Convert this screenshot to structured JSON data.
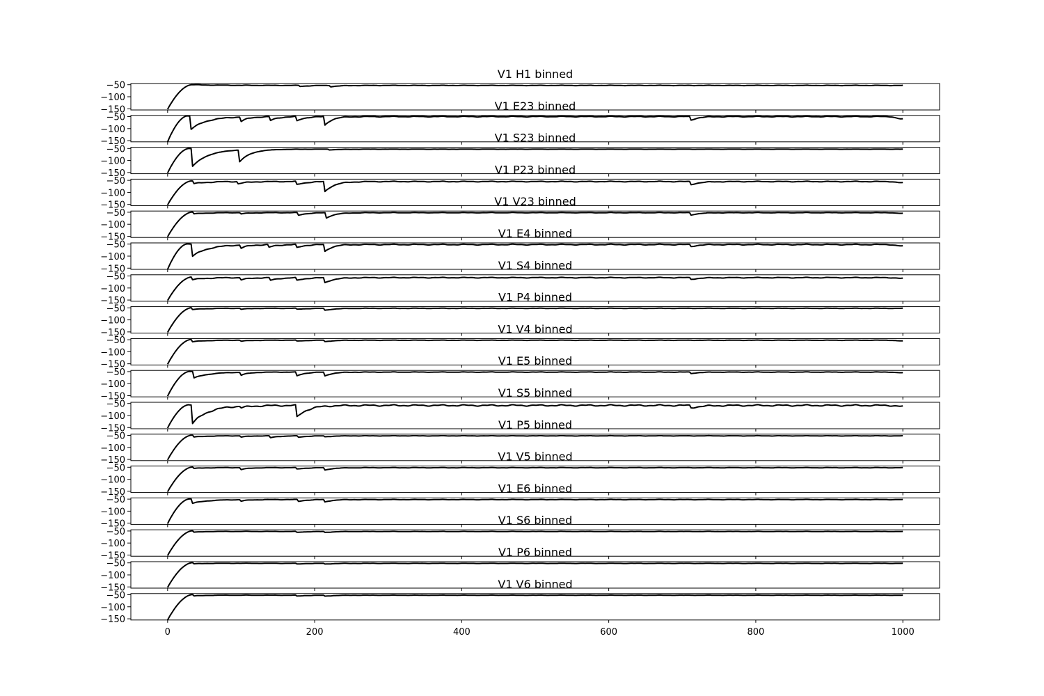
{
  "chart_data": {
    "type": "line",
    "x_range": [
      0,
      1000
    ],
    "xlim": [
      -50,
      1050
    ],
    "ylim": [
      -155,
      -45
    ],
    "x_ticks": [
      0,
      200,
      400,
      600,
      800,
      1000
    ],
    "x_tick_labels": [
      "0",
      "200",
      "400",
      "600",
      "800",
      "1000"
    ],
    "y_ticks": [
      -50,
      -100,
      -150
    ],
    "y_tick_labels": [
      "−50",
      "−100",
      "−150"
    ],
    "line_color": "#000000",
    "grid": false,
    "panels": [
      {
        "title": "V1 H1 binned",
        "start": -152,
        "rise_end": 33,
        "plateau": -53,
        "dips": [
          [
            180,
            -57
          ],
          [
            222,
            -58
          ],
          [
            310,
            -53
          ]
        ],
        "dip_width": 40,
        "spikes": [],
        "noise": 0.6,
        "end_dip": 0
      },
      {
        "title": "V1 E23 binned",
        "start": -155,
        "rise_end": 27,
        "plateau": -50,
        "dips": [
          [
            100,
            -68
          ],
          [
            140,
            -66
          ],
          [
            176,
            -68
          ],
          [
            214,
            -86
          ],
          [
            712,
            -65
          ]
        ],
        "dip_width": 30,
        "spikes": [
          [
            32,
            -105
          ]
        ],
        "noise": 1.0,
        "end_dip": -60
      },
      {
        "title": "V1 S23 binned",
        "start": -152,
        "rise_end": 29,
        "plateau": -53,
        "dips": [
          [
            97,
            -105
          ],
          [
            220,
            -56
          ]
        ],
        "dip_width": 45,
        "spikes": [
          [
            33,
            -130
          ]
        ],
        "noise": 0.3,
        "end_dip": 0
      },
      {
        "title": "V1 P23 binned",
        "start": -152,
        "rise_end": 33,
        "plateau": -55,
        "dips": [
          [
            96,
            -64
          ],
          [
            176,
            -68
          ],
          [
            213,
            -100
          ],
          [
            712,
            -68
          ]
        ],
        "dip_width": 38,
        "spikes": [
          [
            35,
            -67
          ]
        ],
        "noise": 1.0,
        "end_dip": -60
      },
      {
        "title": "V1 V23 binned",
        "start": -152,
        "rise_end": 34,
        "plateau": -52,
        "dips": [
          [
            100,
            -57
          ],
          [
            178,
            -63
          ],
          [
            215,
            -76
          ],
          [
            712,
            -62
          ]
        ],
        "dip_width": 34,
        "spikes": [
          [
            35,
            -60
          ]
        ],
        "noise": 0.6,
        "end_dip": -55
      },
      {
        "title": "V1 E4 binned",
        "start": -155,
        "rise_end": 27,
        "plateau": -52,
        "dips": [
          [
            100,
            -65
          ],
          [
            138,
            -63
          ],
          [
            176,
            -65
          ],
          [
            213,
            -84
          ],
          [
            712,
            -60
          ]
        ],
        "dip_width": 30,
        "spikes": [
          [
            33,
            -105
          ]
        ],
        "noise": 1.2,
        "end_dip": -58
      },
      {
        "title": "V1 S4 binned",
        "start": -152,
        "rise_end": 33,
        "plateau": -57,
        "dips": [
          [
            100,
            -66
          ],
          [
            140,
            -68
          ],
          [
            176,
            -68
          ],
          [
            213,
            -80
          ],
          [
            712,
            -64
          ]
        ],
        "dip_width": 36,
        "spikes": [
          [
            34,
            -68
          ]
        ],
        "noise": 1.0,
        "end_dip": -60
      },
      {
        "title": "V1 P4 binned",
        "start": -152,
        "rise_end": 33,
        "plateau": -52,
        "dips": [
          [
            100,
            -56
          ],
          [
            176,
            -56
          ],
          [
            214,
            -60
          ]
        ],
        "dip_width": 38,
        "spikes": [
          [
            34,
            -60
          ]
        ],
        "noise": 0.5,
        "end_dip": 0
      },
      {
        "title": "V1 V4 binned",
        "start": -152,
        "rise_end": 32,
        "plateau": -52,
        "dips": [
          [
            100,
            -56
          ],
          [
            176,
            -56
          ],
          [
            214,
            -58
          ]
        ],
        "dip_width": 36,
        "spikes": [
          [
            32,
            -62
          ]
        ],
        "noise": 0.5,
        "end_dip": -55
      },
      {
        "title": "V1 E5 binned",
        "start": -152,
        "rise_end": 30,
        "plateau": -52,
        "dips": [
          [
            100,
            -64
          ],
          [
            176,
            -68
          ],
          [
            214,
            -68
          ],
          [
            712,
            -58
          ]
        ],
        "dip_width": 32,
        "spikes": [
          [
            35,
            -80
          ]
        ],
        "noise": 0.6,
        "end_dip": -55
      },
      {
        "title": "V1 S5 binned",
        "start": -152,
        "rise_end": 29,
        "plateau": -58,
        "dips": [
          [
            100,
            -64
          ],
          [
            175,
            -110
          ],
          [
            712,
            -68
          ]
        ],
        "dip_width": 45,
        "spikes": [
          [
            34,
            -135
          ]
        ],
        "noise": 2.0,
        "end_dip": -62
      },
      {
        "title": "V1 P5 binned",
        "start": -152,
        "rise_end": 33,
        "plateau": -52,
        "dips": [
          [
            100,
            -57
          ],
          [
            140,
            -60
          ],
          [
            178,
            -58
          ],
          [
            214,
            -56
          ]
        ],
        "dip_width": 32,
        "spikes": [
          [
            35,
            -60
          ]
        ],
        "noise": 0.5,
        "end_dip": 0
      },
      {
        "title": "V1 V5 binned",
        "start": -152,
        "rise_end": 34,
        "plateau": -52,
        "dips": [
          [
            100,
            -60
          ],
          [
            176,
            -58
          ],
          [
            214,
            -62
          ]
        ],
        "dip_width": 32,
        "spikes": [
          [
            35,
            -58
          ]
        ],
        "noise": 0.5,
        "end_dip": 0
      },
      {
        "title": "V1 E6 binned",
        "start": -152,
        "rise_end": 30,
        "plateau": -52,
        "dips": [
          [
            100,
            -58
          ],
          [
            178,
            -60
          ],
          [
            214,
            -62
          ]
        ],
        "dip_width": 30,
        "spikes": [
          [
            34,
            -70
          ]
        ],
        "noise": 0.6,
        "end_dip": 0
      },
      {
        "title": "V1 S6 binned",
        "start": -152,
        "rise_end": 34,
        "plateau": -52,
        "dips": [
          [
            176,
            -56
          ],
          [
            214,
            -56
          ]
        ],
        "dip_width": 36,
        "spikes": [
          [
            35,
            -58
          ]
        ],
        "noise": 0.4,
        "end_dip": 0
      },
      {
        "title": "V1 P6 binned",
        "start": -152,
        "rise_end": 34,
        "plateau": -52,
        "dips": [
          [
            176,
            -55
          ],
          [
            214,
            -55
          ]
        ],
        "dip_width": 36,
        "spikes": [
          [
            35,
            -57
          ]
        ],
        "noise": 0.4,
        "end_dip": 0
      },
      {
        "title": "V1 V6 binned",
        "start": -155,
        "rise_end": 34,
        "plateau": -52,
        "dips": [
          [
            176,
            -56
          ],
          [
            214,
            -56
          ]
        ],
        "dip_width": 36,
        "spikes": [
          [
            35,
            -58
          ]
        ],
        "noise": 0.4,
        "end_dip": 0
      }
    ]
  }
}
